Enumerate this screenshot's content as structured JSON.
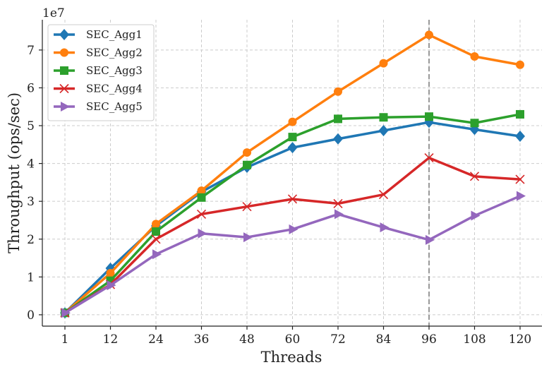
{
  "chart_data": {
    "type": "line",
    "title": "",
    "xlabel": "Threads",
    "ylabel": "Throughput (ops/sec)",
    "y_scale_label": "1e7",
    "categories": [
      "1",
      "12",
      "24",
      "36",
      "48",
      "60",
      "72",
      "84",
      "96",
      "108",
      "120"
    ],
    "y_ticks": [
      0,
      10000000,
      20000000,
      30000000,
      40000000,
      50000000,
      60000000,
      70000000
    ],
    "y_tick_labels": [
      "0",
      "1",
      "2",
      "3",
      "4",
      "5",
      "6",
      "7"
    ],
    "ylim": [
      -3000000,
      78000000
    ],
    "grid": true,
    "legend_position": "top-left",
    "reference_line": {
      "x": "96",
      "style": "dashed",
      "color": "#999999"
    },
    "series": [
      {
        "name": "SEC_Agg1",
        "color": "#1f77b4",
        "marker": "diamond",
        "values": [
          500000,
          12300000,
          23500000,
          32500000,
          39000000,
          44200000,
          46500000,
          48700000,
          50900000,
          49000000,
          47200000
        ]
      },
      {
        "name": "SEC_Agg2",
        "color": "#ff7f0e",
        "marker": "circle",
        "values": [
          500000,
          11000000,
          24000000,
          32800000,
          42900000,
          51000000,
          59000000,
          66500000,
          74000000,
          68300000,
          66100000
        ]
      },
      {
        "name": "SEC_Agg3",
        "color": "#2ca02c",
        "marker": "square",
        "values": [
          500000,
          9000000,
          22000000,
          31000000,
          39600000,
          47000000,
          51800000,
          52200000,
          52400000,
          50700000,
          53000000
        ]
      },
      {
        "name": "SEC_Agg4",
        "color": "#d62728",
        "marker": "x",
        "values": [
          500000,
          8000000,
          20000000,
          26600000,
          28600000,
          30600000,
          29400000,
          31800000,
          41500000,
          36600000,
          35800000
        ]
      },
      {
        "name": "SEC_Agg5",
        "color": "#9467bd",
        "marker": "triangle-right",
        "values": [
          500000,
          7800000,
          16000000,
          21500000,
          20500000,
          22600000,
          26600000,
          23100000,
          19800000,
          26200000,
          31400000
        ]
      }
    ]
  }
}
